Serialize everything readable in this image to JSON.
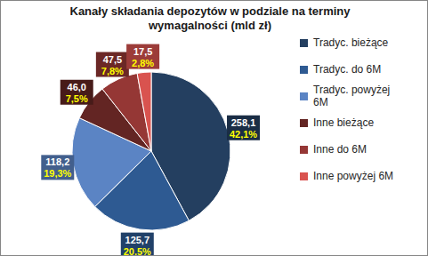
{
  "chart_data": {
    "type": "pie",
    "title": "Kanały składania depozytów w podziale na terminy wymagalności (mld zł)",
    "categories": [
      "Tradyc. bieżące",
      "Tradyc. do 6M",
      "Tradyc. powyżej 6M",
      "Inne bieżące",
      "Inne do 6M",
      "Inne powyżej 6M"
    ],
    "values": [
      258.1,
      125.7,
      118.2,
      46.0,
      47.5,
      17.5
    ],
    "value_labels": [
      "258,1",
      "125,7",
      "118,2",
      "46,0",
      "47,5",
      "17,5"
    ],
    "percent": [
      42.1,
      20.5,
      19.3,
      7.5,
      7.8,
      2.8
    ],
    "percent_labels": [
      "42,1%",
      "20,5%",
      "19,3%",
      "7,5%",
      "7,8%",
      "2,8%"
    ],
    "colors": [
      "#243F60",
      "#2E5A92",
      "#5B84C4",
      "#632523",
      "#953735",
      "#D9534F"
    ],
    "data_labels": true,
    "legend": "right"
  }
}
